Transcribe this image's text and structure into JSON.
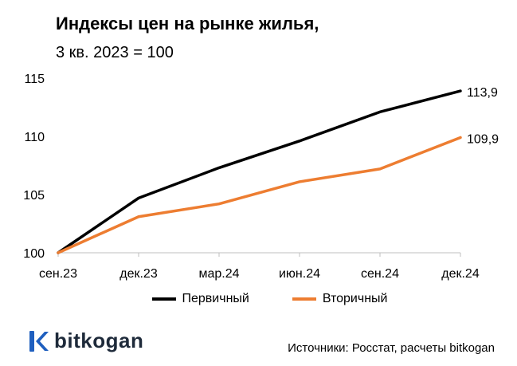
{
  "chart_data": {
    "type": "line",
    "title": "Индексы цен на рынке жилья,",
    "subtitle": "3 кв. 2023 = 100",
    "categories": [
      "сен.23",
      "дек.23",
      "мар.24",
      "июн.24",
      "сен.24",
      "дек.24"
    ],
    "yticks": [
      "100",
      "105",
      "110",
      "115"
    ],
    "ylim": [
      100,
      115
    ],
    "grid": false,
    "legend_position": "bottom",
    "series": [
      {
        "name": "Первичный",
        "values": [
          100,
          104.7,
          107.3,
          109.6,
          112.1,
          113.9
        ],
        "color": "#000000",
        "end_label": "113,9"
      },
      {
        "name": "Вторичный",
        "values": [
          100,
          103.1,
          104.2,
          106.1,
          107.2,
          109.9
        ],
        "color": "#ed7d31",
        "end_label": "109,9"
      }
    ]
  },
  "brand": {
    "name": "bitkogan",
    "color": "#1f5fbf"
  },
  "footer": {
    "source": "Источники: Росстат, расчеты bitkogan"
  }
}
